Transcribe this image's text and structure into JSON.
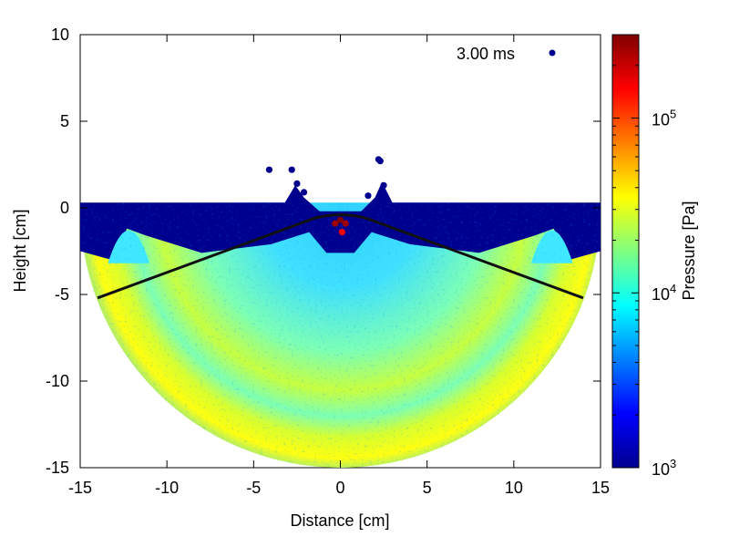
{
  "chart_data": {
    "type": "scatter",
    "title": "",
    "xlabel": "Distance [cm]",
    "ylabel": "Height [cm]",
    "xlim": [
      -15,
      15
    ],
    "ylim": [
      -15,
      10
    ],
    "xticks": [
      -15,
      -10,
      -5,
      0,
      5,
      10,
      15
    ],
    "xtick_labels": [
      "-15",
      "-10",
      "-5",
      "0",
      "5",
      "10",
      "15"
    ],
    "yticks": [
      -15,
      -10,
      -5,
      0,
      5,
      10
    ],
    "ytick_labels": [
      "-15",
      "-10",
      "-5",
      "0",
      "5",
      "10"
    ],
    "legend": {
      "label": "3.00 ms",
      "placement": "top-right",
      "marker_color": "#00008f"
    },
    "colorbar": {
      "label": "Pressure [Pa]",
      "scale": "log",
      "min": 1000,
      "max": 300000,
      "ticks": [
        {
          "value": 1000,
          "base": "10",
          "exp": "3"
        },
        {
          "value": 10000,
          "base": "10",
          "exp": "4"
        },
        {
          "value": 100000,
          "base": "10",
          "exp": "5"
        }
      ],
      "colormap": [
        "#00008f",
        "#0000ff",
        "#0080ff",
        "#00ffff",
        "#80ff80",
        "#ffff00",
        "#ff8000",
        "#ff0000",
        "#800000"
      ]
    },
    "particle_region": {
      "description": "semicircle of particles with free surface near y=0.3",
      "center": [
        0,
        0
      ],
      "radius": 15,
      "surface_y": 0.3,
      "typical_pressure_Pa": 20000
    },
    "series": [
      {
        "name": "contact lines",
        "style": "black line",
        "segments": [
          {
            "x": [
              -14,
              -1.5
            ],
            "y": [
              -5.2,
              -0.6
            ]
          },
          {
            "x": [
              1.5,
              14
            ],
            "y": [
              -0.6,
              -5.2
            ]
          }
        ]
      },
      {
        "name": "high-pressure core",
        "style": "scatter",
        "x": [
          0,
          -0.3,
          0.3,
          0.1
        ],
        "y": [
          -0.7,
          -0.9,
          -0.9,
          -1.4
        ],
        "pressure": [
          300000,
          250000,
          250000,
          150000
        ]
      },
      {
        "name": "splash droplets",
        "style": "scatter",
        "x": [
          -4.1,
          -2.8,
          -2.5,
          -2.1,
          2.2,
          2.3,
          1.6,
          2.5
        ],
        "y": [
          2.2,
          2.2,
          1.4,
          0.9,
          2.8,
          2.7,
          0.7,
          1.3
        ],
        "pressure": [
          1000,
          1000,
          1000,
          1000,
          1000,
          1000,
          1000,
          1000
        ]
      }
    ]
  }
}
